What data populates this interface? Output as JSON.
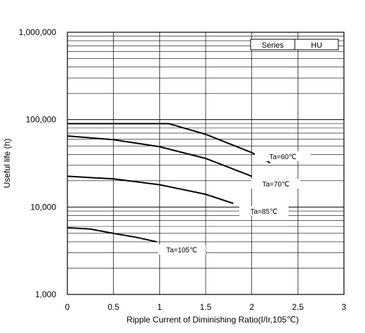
{
  "chart_data": {
    "type": "line",
    "title": "",
    "xlabel": "Ripple Current of Diminishing Ratio(I/Ir,105℃)",
    "ylabel": "Useful life (h)",
    "xlim": [
      0,
      3
    ],
    "ylim": [
      1000,
      1000000
    ],
    "yscale": "log",
    "x_ticks": [
      0,
      0.5,
      1,
      1.5,
      2,
      2.5,
      3
    ],
    "x_tick_labels": [
      "0",
      "0.5",
      "1",
      "1.5",
      "2",
      "2.5",
      "3"
    ],
    "y_ticks": [
      1000,
      10000,
      100000,
      1000000
    ],
    "y_tick_labels": [
      "1,000",
      "10,000",
      "100,000",
      "1,000,000"
    ],
    "grid": true,
    "legend_box": {
      "label": "Series",
      "value": "HU",
      "placement": "top-right"
    },
    "series": [
      {
        "name": "Ta=60℃",
        "x": [
          0,
          0.5,
          1.1,
          1.5,
          2.0,
          2.2
        ],
        "y": [
          90000,
          90000,
          90000,
          68000,
          42000,
          32000
        ]
      },
      {
        "name": "Ta=70℃",
        "x": [
          0,
          0.5,
          1.0,
          1.5,
          2.0
        ],
        "y": [
          65000,
          59000,
          49000,
          36000,
          22500
        ]
      },
      {
        "name": "Ta=85℃",
        "x": [
          0,
          0.5,
          1.0,
          1.5,
          1.8
        ],
        "y": [
          22500,
          21000,
          18000,
          14000,
          11000
        ]
      },
      {
        "name": "Ta=105℃",
        "x": [
          0,
          0.25,
          0.5,
          0.75,
          0.97
        ],
        "y": [
          5800,
          5600,
          5000,
          4500,
          4000
        ]
      }
    ]
  }
}
